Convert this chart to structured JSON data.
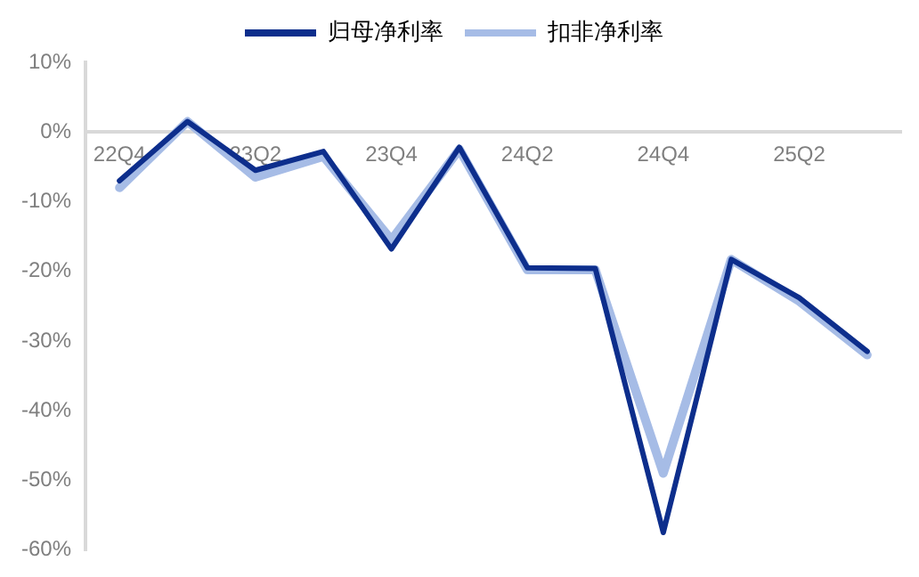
{
  "chart_data": {
    "type": "line",
    "categories": [
      "22Q4",
      null,
      "23Q2",
      null,
      "23Q4",
      null,
      "24Q2",
      null,
      "24Q4",
      null,
      "25Q2",
      null
    ],
    "series": [
      {
        "name": "归母净利率",
        "color": "#0d2e8c",
        "values": [
          -7.0,
          1.5,
          -5.5,
          -2.8,
          -16.8,
          -2.2,
          -19.5,
          -19.6,
          -57.5,
          -18.3,
          -23.8,
          -31.5
        ]
      },
      {
        "name": "扣非净利率",
        "color": "#a6bce6",
        "values": [
          -8.0,
          1.5,
          -6.5,
          -3.5,
          -15.5,
          -2.5,
          -19.8,
          -19.8,
          -49.0,
          -18.3,
          -24.3,
          -32.0
        ]
      }
    ],
    "ylim": [
      -60,
      10
    ],
    "yticks": [
      {
        "value": 10,
        "label": "10%"
      },
      {
        "value": 0,
        "label": "0%"
      },
      {
        "value": -10,
        "label": "-10%"
      },
      {
        "value": -20,
        "label": "-20%"
      },
      {
        "value": -30,
        "label": "-30%"
      },
      {
        "value": -40,
        "label": "-40%"
      },
      {
        "value": -50,
        "label": "-50%"
      },
      {
        "value": -60,
        "label": "-60%"
      }
    ],
    "grid": false,
    "legend": "top",
    "marker": "none",
    "line_style": "solid"
  }
}
